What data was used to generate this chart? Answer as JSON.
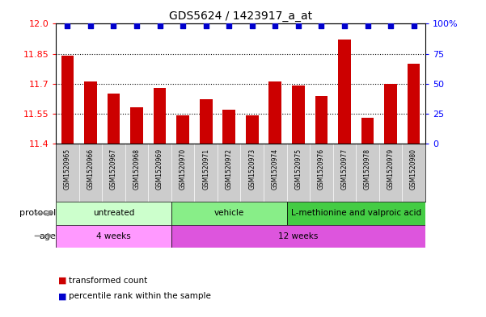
{
  "title": "GDS5624 / 1423917_a_at",
  "samples": [
    "GSM1520965",
    "GSM1520966",
    "GSM1520967",
    "GSM1520968",
    "GSM1520969",
    "GSM1520970",
    "GSM1520971",
    "GSM1520972",
    "GSM1520973",
    "GSM1520974",
    "GSM1520975",
    "GSM1520976",
    "GSM1520977",
    "GSM1520978",
    "GSM1520979",
    "GSM1520980"
  ],
  "bar_values": [
    11.84,
    11.71,
    11.65,
    11.58,
    11.68,
    11.54,
    11.62,
    11.57,
    11.54,
    11.71,
    11.69,
    11.64,
    11.92,
    11.53,
    11.7,
    11.8
  ],
  "percentile_values": [
    98,
    98,
    98,
    98,
    98,
    98,
    98,
    98,
    98,
    98,
    98,
    98,
    98,
    98,
    98,
    98
  ],
  "ylim_left": [
    11.4,
    12.0
  ],
  "ylim_right": [
    0,
    100
  ],
  "yticks_left": [
    11.4,
    11.55,
    11.7,
    11.85,
    12.0
  ],
  "yticks_right": [
    0,
    25,
    50,
    75,
    100
  ],
  "bar_color": "#cc0000",
  "dot_color": "#0000cc",
  "bar_bottom": 11.4,
  "protocol_groups": [
    {
      "label": "untreated",
      "start": 0,
      "end": 5
    },
    {
      "label": "vehicle",
      "start": 5,
      "end": 10
    },
    {
      "label": "L-methionine and valproic acid",
      "start": 10,
      "end": 16
    }
  ],
  "protocol_colors": [
    "#ccffcc",
    "#88ee88",
    "#44cc44"
  ],
  "age_groups": [
    {
      "label": "4 weeks",
      "start": 0,
      "end": 5
    },
    {
      "label": "12 weeks",
      "start": 5,
      "end": 16
    }
  ],
  "age_colors": [
    "#ff99ff",
    "#dd55dd"
  ],
  "legend_items": [
    {
      "color": "#cc0000",
      "label": "transformed count"
    },
    {
      "color": "#0000cc",
      "label": "percentile rank within the sample"
    }
  ],
  "xlabel_protocol": "protocol",
  "xlabel_age": "age",
  "background_color": "#ffffff",
  "sample_label_bg": "#cccccc",
  "grid_dotted_at": [
    11.55,
    11.7,
    11.85
  ]
}
